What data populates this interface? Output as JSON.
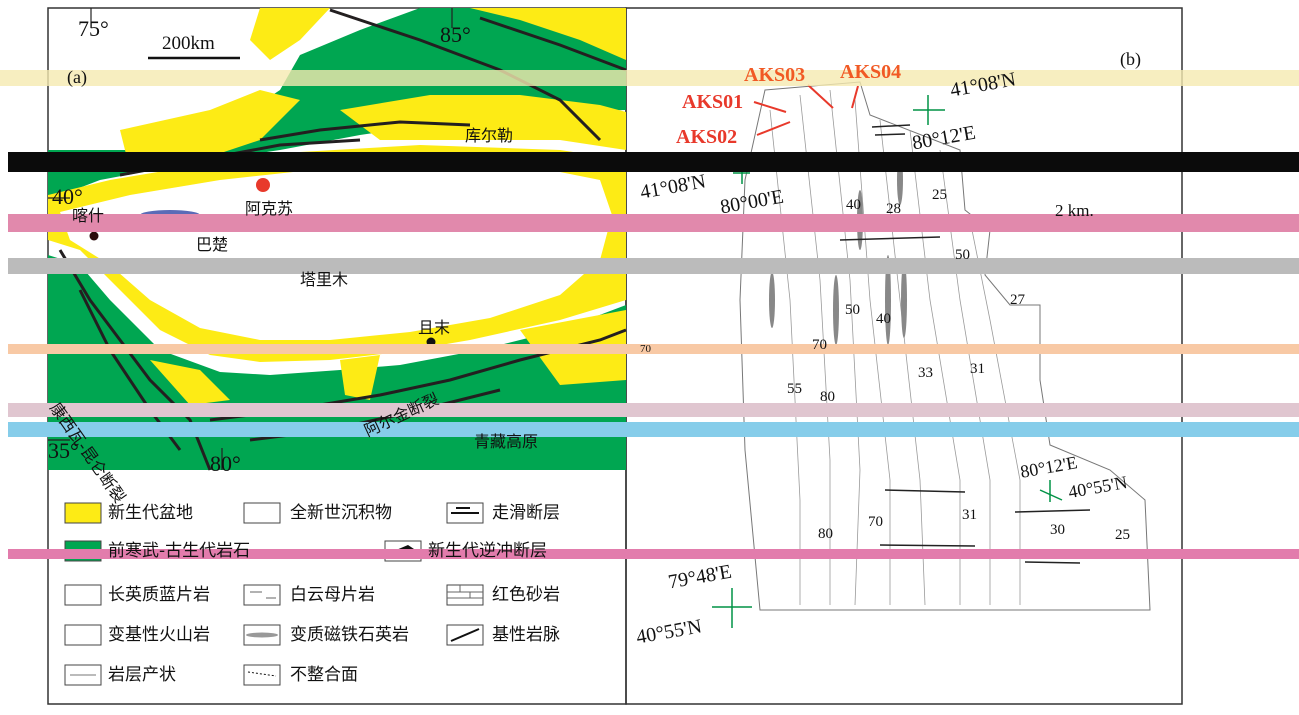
{
  "colors": {
    "cenozoic_basin": "#FDEB15",
    "precambrian_paleozoic": "#00A651",
    "fault_line": "#231F20",
    "sample_red": "#E8392B",
    "sample_orange": "#F15A24",
    "grid_green": "#009245",
    "kashgar_blue": "#5B6BB7"
  },
  "map_a": {
    "panel_label": "(a)",
    "scale_label": "200km",
    "lon_75": "75°",
    "lon_85": "85°",
    "lon_80": "80°",
    "lat_40": "40°",
    "lat_35": "35°",
    "places": {
      "kuerle": "库尔勒",
      "akesu": "阿克苏",
      "kashi": "喀什",
      "bachu": "巴楚",
      "tarim": "塔里木",
      "qiemo": "且末",
      "kunlun_fault": "康西瓦-昆仑断裂",
      "altun_fault": "阿尔金断裂",
      "tibet": "青藏高原"
    }
  },
  "legend": {
    "items": [
      {
        "label": "新生代盆地",
        "icon": "yellow-fill"
      },
      {
        "label": "全新世沉积物",
        "icon": "white-fill"
      },
      {
        "label": "走滑断层",
        "icon": "strike-slip-fault"
      },
      {
        "label": "前寒武-古生代岩石",
        "icon": "green-fill"
      },
      {
        "label": "新生代逆冲断层",
        "icon": "thrust-fault"
      },
      {
        "label": "长英质蓝片岩",
        "icon": "dots-pattern"
      },
      {
        "label": "白云母片岩",
        "icon": "dash-pattern"
      },
      {
        "label": "红色砂岩",
        "icon": "brick-pattern"
      },
      {
        "label": "变基性火山岩",
        "icon": "v-pattern"
      },
      {
        "label": "变质磁铁石英岩",
        "icon": "lens-pattern"
      },
      {
        "label": "基性岩脉",
        "icon": "dike-line"
      },
      {
        "label": "岩层产状",
        "icon": "strike-dip"
      },
      {
        "label": "不整合面",
        "icon": "unconformity"
      }
    ]
  },
  "map_b": {
    "panel_label": "(b)",
    "scale_label": "2 km.",
    "samples": [
      "AKS01",
      "AKS02",
      "AKS03",
      "AKS04"
    ],
    "coords": {
      "ne_lat": "41°08'N",
      "ne_lon": "80°12'E",
      "nw_lat": "41°08'N",
      "nw_lon": "80°00'E",
      "se_lon": "80°12'E",
      "se_lat": "40°55'N",
      "sw_lon": "79°48'E",
      "sw_lat": "40°55'N"
    },
    "dips": [
      "25",
      "40",
      "28",
      "50",
      "27",
      "50",
      "40",
      "70",
      "55",
      "80",
      "33",
      "31",
      "70",
      "31",
      "80",
      "30",
      "25",
      "70"
    ]
  }
}
